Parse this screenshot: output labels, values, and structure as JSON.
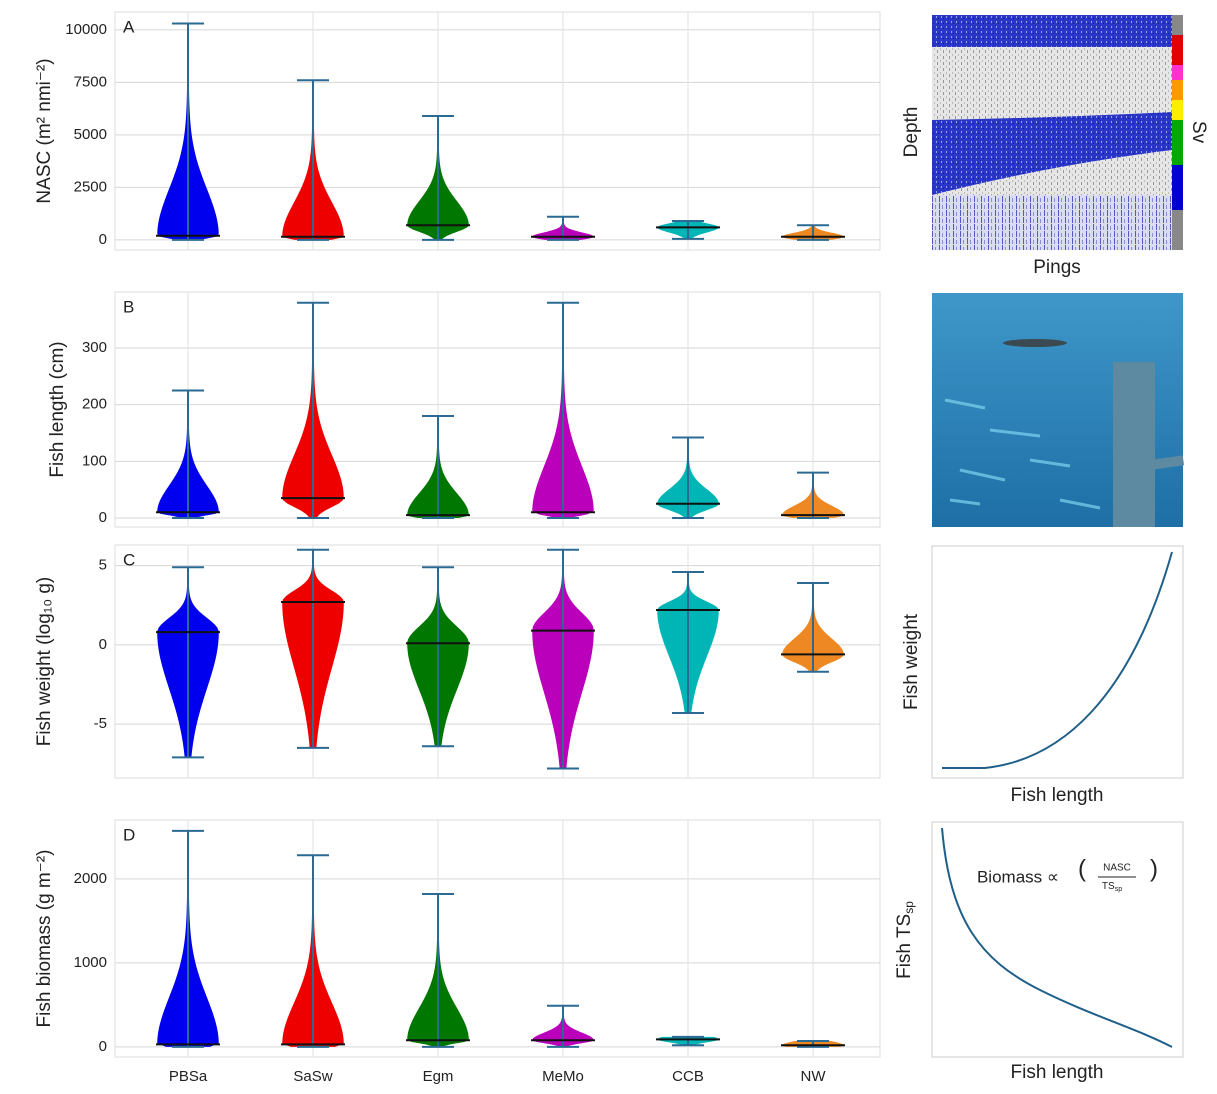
{
  "chart_data": [
    {
      "type": "violin",
      "label": "A",
      "ylabel": "NASC (m² nmi⁻²)",
      "ylim": [
        -480,
        10850
      ],
      "yticks": [
        0,
        2500,
        5000,
        7500,
        10000
      ],
      "grid": true,
      "colors": [
        "#0000ee",
        "#ee0000",
        "#007700",
        "#bb00bb",
        "#00b5b5",
        "#ee8822"
      ],
      "min": [
        0,
        0,
        0,
        0,
        50,
        0
      ],
      "median": [
        200,
        150,
        700,
        150,
        600,
        150
      ],
      "max": [
        10300,
        7600,
        5900,
        1100,
        900,
        700
      ]
    },
    {
      "type": "violin",
      "label": "B",
      "ylabel": "Fish length (cm)",
      "ylim": [
        -16,
        399
      ],
      "yticks": [
        0,
        100,
        200,
        300
      ],
      "grid": true,
      "colors": [
        "#0000ee",
        "#ee0000",
        "#007700",
        "#bb00bb",
        "#00b5b5",
        "#ee8822"
      ],
      "min": [
        0,
        0,
        0,
        0,
        0,
        0
      ],
      "median": [
        10,
        35,
        5,
        10,
        25,
        5
      ],
      "max": [
        225,
        380,
        180,
        380,
        142,
        80
      ]
    },
    {
      "type": "violin",
      "label": "C",
      "ylabel": "Fish weight (log₁₀ g)",
      "ylim": [
        -8.4,
        6.3
      ],
      "yticks": [
        -5,
        0,
        5
      ],
      "grid": true,
      "colors": [
        "#0000ee",
        "#ee0000",
        "#007700",
        "#bb00bb",
        "#00b5b5",
        "#ee8822"
      ],
      "min": [
        -7.1,
        -6.5,
        -6.4,
        -7.8,
        -4.3,
        -1.7
      ],
      "median": [
        0.8,
        2.7,
        0.1,
        0.9,
        2.2,
        -0.6
      ],
      "max": [
        4.9,
        6.0,
        4.9,
        6.0,
        4.6,
        3.9
      ]
    },
    {
      "type": "violin",
      "label": "D",
      "ylabel": "Fish biomass (g m⁻²)",
      "ylim": [
        -120,
        2700
      ],
      "yticks": [
        0,
        1000,
        2000
      ],
      "grid": true,
      "categories": [
        "PBSa",
        "SaSw",
        "Egm",
        "MeMo",
        "CCB",
        "NW"
      ],
      "colors": [
        "#0000ee",
        "#ee0000",
        "#007700",
        "#bb00bb",
        "#00b5b5",
        "#ee8822"
      ],
      "min": [
        0,
        0,
        0,
        0,
        20,
        0
      ],
      "median": [
        30,
        30,
        80,
        80,
        90,
        20
      ],
      "max": [
        2570,
        2280,
        1820,
        490,
        120,
        70
      ]
    }
  ],
  "side_panels": {
    "echogram": {
      "ylabel": "Depth",
      "xlabel": "Pings",
      "colorbar_label": "Sv"
    },
    "weight_curve": {
      "ylabel": "Fish weight",
      "xlabel": "Fish length"
    },
    "ts_curve": {
      "ylabel": "Fish TS",
      "ylabel_sub": "sp",
      "xlabel": "Fish length",
      "formula": "Biomass ∝",
      "numerator": "NASC",
      "denominator": "TS",
      "denominator_sub": "sp"
    }
  }
}
